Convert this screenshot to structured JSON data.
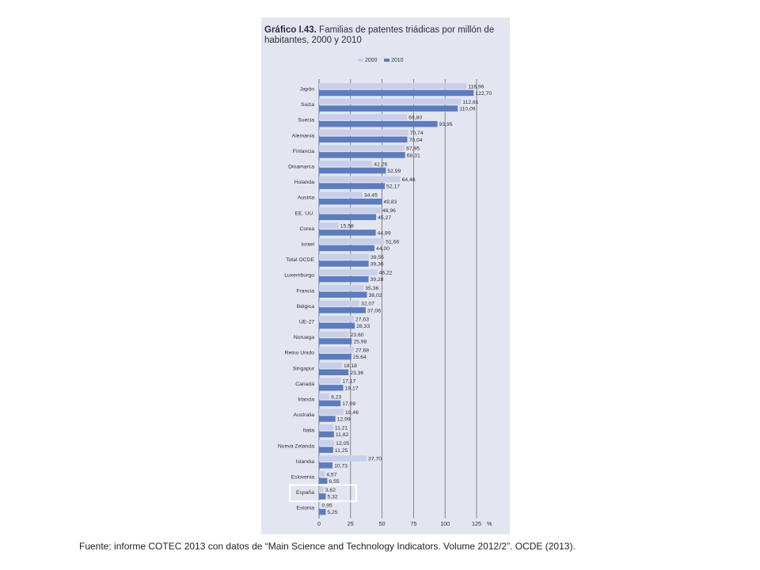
{
  "title_prefix": "Gráfico I.43.",
  "title_text": "Familias de patentes triádicas por millón de habitantes, 2000 y 2010",
  "source_note": "Fuente: informe COTEC 2013  con datos de “Main Science and Technology Indicators. Volume 2012/2”. OCDE (2013).",
  "colors": {
    "series_2000": "#c9cfe8",
    "series_2010": "#5b7cc0",
    "gridline": "#6b6f78",
    "panel_bg": "#e3e6f0"
  },
  "chart_data": {
    "type": "bar",
    "orientation": "horizontal",
    "categories": [
      "Japón",
      "Suiza",
      "Suecia",
      "Alemania",
      "Finlancia",
      "Dinamarca",
      "Holanda",
      "Austria",
      "EE. UU.",
      "Corea",
      "Israel",
      "Total OCDE",
      "Luxemburgo",
      "Francia",
      "Bélgica",
      "UE-27",
      "Noruega",
      "Reino Unido",
      "Singapur",
      "Canadá",
      "Irlanda",
      "Australia",
      "Italia",
      "Nueva Zelanda",
      "Islandia",
      "Eslovenia",
      "España",
      "Estonia"
    ],
    "series": [
      {
        "name": "2000",
        "values": [
          116.96,
          112.61,
          69.8,
          70.74,
          67.95,
          42.26,
          64.46,
          34.45,
          48.96,
          15.58,
          51.66,
          39.55,
          46.22,
          35.36,
          32.07,
          27.63,
          23.6,
          27.68,
          18.18,
          17.17,
          8.23,
          19.46,
          11.21,
          12.05,
          37.7,
          4.57,
          3.62,
          0.95
        ],
        "labels": [
          "116,96",
          "112,61",
          "69,80",
          "70,74",
          "67,95",
          "42,26",
          "64,46",
          "34,45",
          "48,96",
          "15,58",
          "51,66",
          "39,55",
          "46,22",
          "35,36",
          "32,07",
          "27,63",
          "23,60",
          "27,68",
          "18,18",
          "17,17",
          "8,23",
          "19,46",
          "11,21",
          "12,05",
          "37,70",
          "4,57",
          "3,62",
          "0,95"
        ]
      },
      {
        "name": "2010",
        "values": [
          122.7,
          110.09,
          93.95,
          70.04,
          68.31,
          52.99,
          52.17,
          49.83,
          45.27,
          44.99,
          44.0,
          39.36,
          39.28,
          38.02,
          37.06,
          28.33,
          25.98,
          25.64,
          23.36,
          19.17,
          17.09,
          12.99,
          11.82,
          11.25,
          10.73,
          6.55,
          5.32,
          5.25
        ],
        "labels": [
          "122,70",
          "110,09",
          "93,95",
          "70,04",
          "68,31",
          "52,99",
          "52,17",
          "49,83",
          "45,27",
          "44,99",
          "44,00",
          "39,36",
          "39,28",
          "38,02",
          "37,06",
          "28,33",
          "25,98",
          "25,64",
          "23,36",
          "19,17",
          "17,09",
          "12,99",
          "11,82",
          "11,25",
          "10,73",
          "6,55",
          "5,32",
          "5,25"
        ]
      }
    ],
    "xlim": [
      0,
      125
    ],
    "x_ticks": [
      0,
      25,
      50,
      75,
      100,
      125
    ],
    "x_unit": "%",
    "highlighted_category": "España",
    "grid": true,
    "legend": "top"
  }
}
